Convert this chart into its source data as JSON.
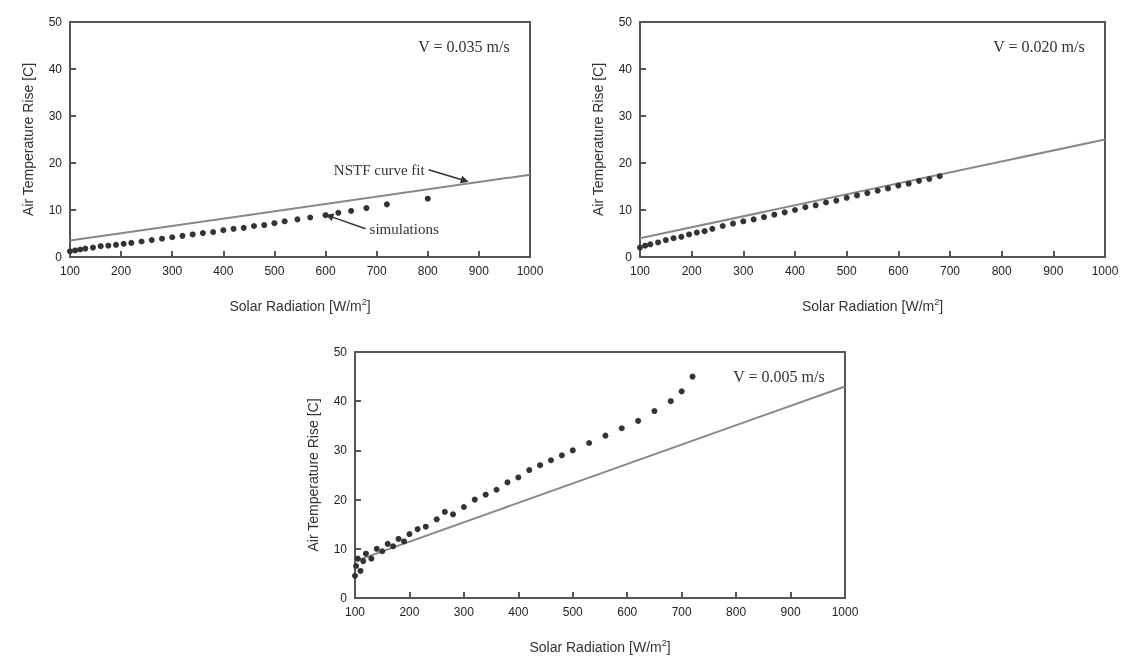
{
  "chart_data": [
    {
      "type": "scatter",
      "xlabel": "Solar Radiation [W/m$^{2}$]",
      "ylabel": "Air Temperature Rise [C]",
      "xlim": [
        100,
        1000
      ],
      "ylim": [
        0,
        50
      ],
      "xticks": [
        100,
        200,
        300,
        400,
        500,
        600,
        700,
        800,
        900,
        1000
      ],
      "yticks": [
        0,
        10,
        20,
        30,
        40,
        50
      ],
      "grid": false,
      "annotations": [
        "V = 0.035 m/s",
        {
          "text": "NSTF curve fit",
          "x": 880,
          "y": 16
        },
        {
          "text": "simulations",
          "x": 600,
          "y": 9
        }
      ],
      "series": [
        {
          "marker": "circle",
          "color": "#333333",
          "x": [
            100,
            110,
            120,
            130,
            145,
            160,
            175,
            190,
            205,
            220,
            240,
            260,
            280,
            300,
            320,
            340,
            360,
            380,
            400,
            420,
            440,
            460,
            480,
            500,
            520,
            545,
            570,
            600,
            625,
            650,
            680,
            720,
            800
          ],
          "values": [
            1.2,
            1.4,
            1.6,
            1.8,
            2.0,
            2.3,
            2.4,
            2.6,
            2.8,
            3.0,
            3.3,
            3.6,
            3.9,
            4.2,
            4.5,
            4.8,
            5.1,
            5.3,
            5.7,
            6.0,
            6.2,
            6.6,
            6.8,
            7.2,
            7.6,
            8.0,
            8.4,
            8.9,
            9.4,
            9.8,
            10.4,
            11.2,
            12.4
          ]
        },
        {
          "type": "line",
          "color": "#888888",
          "line_style": "solid",
          "x": [
            100,
            1000
          ],
          "values": [
            3.5,
            17.5
          ]
        }
      ]
    },
    {
      "type": "scatter",
      "xlabel": "Solar Radiation [W/m$^{2}$]",
      "ylabel": "Air Temperature Rise [C]",
      "xlim": [
        100,
        1000
      ],
      "ylim": [
        0,
        50
      ],
      "xticks": [
        100,
        200,
        300,
        400,
        500,
        600,
        700,
        800,
        900,
        1000
      ],
      "yticks": [
        0,
        10,
        20,
        30,
        40,
        50
      ],
      "grid": false,
      "annotations": [
        "V = 0.020 m/s"
      ],
      "series": [
        {
          "marker": "circle",
          "color": "#333333",
          "x": [
            100,
            110,
            120,
            135,
            150,
            165,
            180,
            195,
            210,
            225,
            240,
            260,
            280,
            300,
            320,
            340,
            360,
            380,
            400,
            420,
            440,
            460,
            480,
            500,
            520,
            540,
            560,
            580,
            600,
            620,
            640,
            660,
            680
          ],
          "values": [
            2.0,
            2.4,
            2.7,
            3.1,
            3.6,
            4.0,
            4.3,
            4.8,
            5.2,
            5.5,
            6.0,
            6.6,
            7.1,
            7.6,
            8.0,
            8.5,
            9.0,
            9.5,
            10.0,
            10.6,
            11.0,
            11.6,
            12.0,
            12.6,
            13.1,
            13.6,
            14.1,
            14.6,
            15.2,
            15.6,
            16.2,
            16.6,
            17.2
          ]
        },
        {
          "type": "line",
          "color": "#888888",
          "line_style": "solid",
          "x": [
            100,
            1000
          ],
          "values": [
            4,
            25
          ]
        }
      ]
    },
    {
      "type": "scatter",
      "xlabel": "Solar Radiation [W/m$^{2}$]",
      "ylabel": "Air Temperature Rise [C]",
      "xlim": [
        100,
        1000
      ],
      "ylim": [
        0,
        50
      ],
      "xticks": [
        100,
        200,
        300,
        400,
        500,
        600,
        700,
        800,
        900,
        1000
      ],
      "yticks": [
        0,
        10,
        20,
        30,
        40,
        50
      ],
      "grid": false,
      "annotations": [
        "V = 0.005 m/s"
      ],
      "series": [
        {
          "marker": "circle",
          "color": "#333333",
          "x": [
            100,
            102,
            105,
            110,
            115,
            120,
            130,
            140,
            150,
            160,
            170,
            180,
            190,
            200,
            215,
            230,
            250,
            265,
            280,
            300,
            320,
            340,
            360,
            380,
            400,
            420,
            440,
            460,
            480,
            500,
            530,
            560,
            590,
            620,
            650,
            680,
            700,
            720
          ],
          "values": [
            4.5,
            6.5,
            8,
            5.5,
            7.5,
            9,
            8,
            10,
            9.5,
            11,
            10.5,
            12,
            11.5,
            13,
            14,
            14.5,
            16,
            17.5,
            17,
            18.5,
            20,
            21,
            22,
            23.5,
            24.5,
            26,
            27,
            28,
            29,
            30,
            31.5,
            33,
            34.5,
            36,
            38,
            40,
            42,
            45
          ]
        },
        {
          "type": "line",
          "color": "#888888",
          "line_style": "solid",
          "x": [
            100,
            1000
          ],
          "values": [
            7.5,
            43
          ]
        }
      ]
    }
  ]
}
